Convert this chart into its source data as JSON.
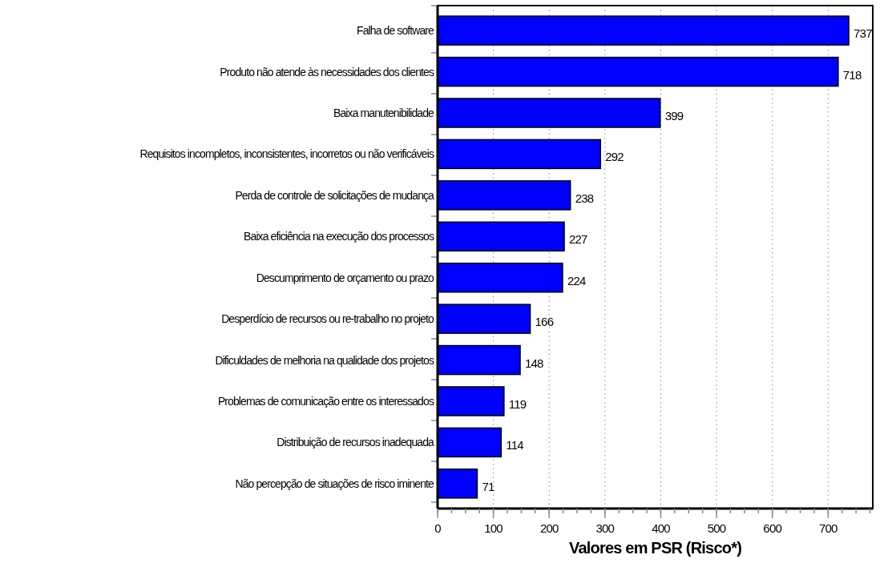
{
  "chart_data": {
    "type": "bar",
    "orientation": "horizontal",
    "xlabel": "Valores em PSR (Risco*)",
    "categories": [
      "Falha de software",
      "Produto não atende às necessidades dos clientes",
      "Baixa manutenibilidade",
      "Requisitos incompletos, inconsistentes, incorretos ou não verificáveis",
      "Perda de controle de solicitações de mudança",
      "Baixa eficiência na execução dos processos",
      "Descumprimento de orçamento ou prazo",
      "Desperdício de recursos ou re-trabalho no projeto",
      "Dificuldades de melhoria na qualidade dos projetos",
      "Problemas de comunicação entre os interessados",
      "Distribuição de recursos inadequada",
      "Não percepção de situações de risco iminente"
    ],
    "values": [
      737,
      718,
      399,
      292,
      238,
      227,
      224,
      166,
      148,
      119,
      114,
      71
    ],
    "color": "#0000ff",
    "data_labels": true,
    "grid": "x",
    "xlim": [
      0,
      780
    ],
    "xticks": [
      0,
      100,
      200,
      300,
      400,
      500,
      600,
      700
    ]
  }
}
